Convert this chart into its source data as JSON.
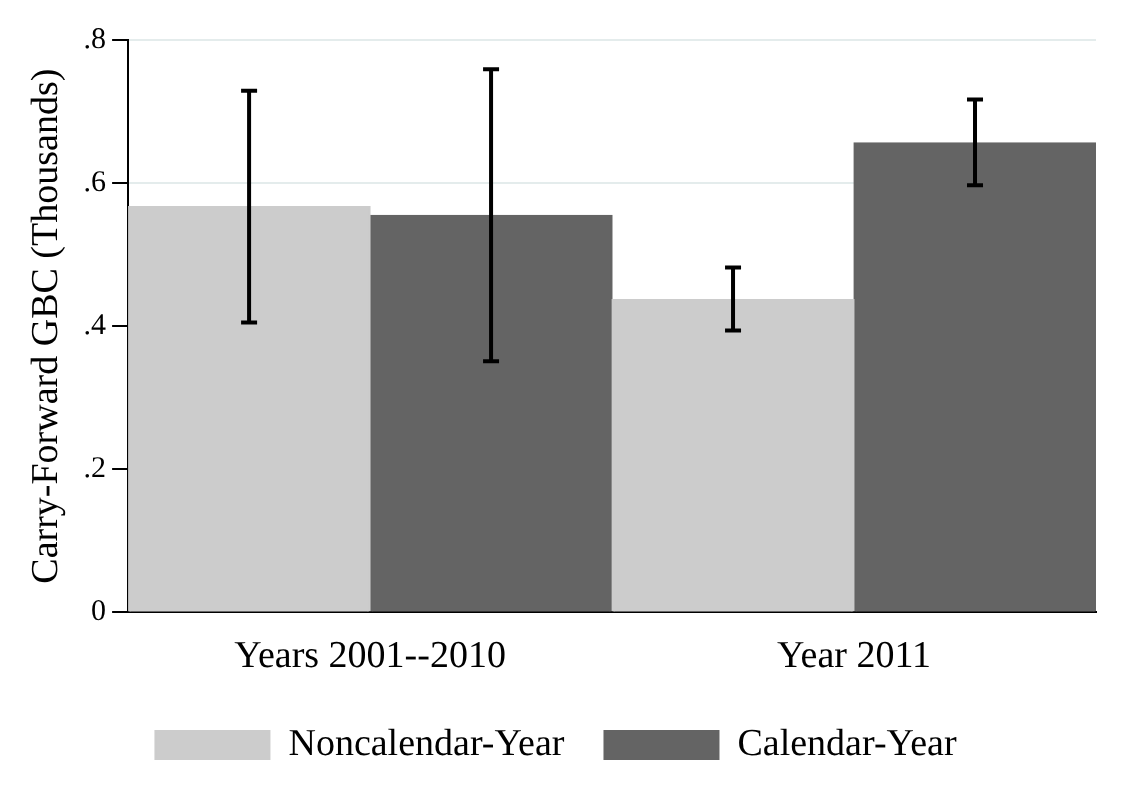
{
  "chart_data": {
    "type": "bar",
    "ylabel": "Carry-Forward GBC (Thousands)",
    "categories": [
      "Years 2001--2010",
      "Year 2011"
    ],
    "series": [
      {
        "name": "Noncalendar-Year",
        "color": "#cccccc",
        "values": [
          0.567,
          0.437
        ],
        "errors": [
          [
            0.405,
            0.729
          ],
          [
            0.394,
            0.482
          ]
        ]
      },
      {
        "name": "Calendar-Year",
        "color": "#646464",
        "values": [
          0.555,
          0.656
        ],
        "errors": [
          [
            0.351,
            0.759
          ],
          [
            0.597,
            0.717
          ]
        ]
      }
    ],
    "ylim": [
      0,
      0.8
    ],
    "yticks": [
      {
        "value": 0,
        "label": "0"
      },
      {
        "value": 0.2,
        "label": ".2"
      },
      {
        "value": 0.4,
        "label": ".4"
      },
      {
        "value": 0.6,
        "label": ".6"
      },
      {
        "value": 0.8,
        "label": ".8"
      }
    ],
    "grid": "y",
    "legend": "bottom"
  }
}
